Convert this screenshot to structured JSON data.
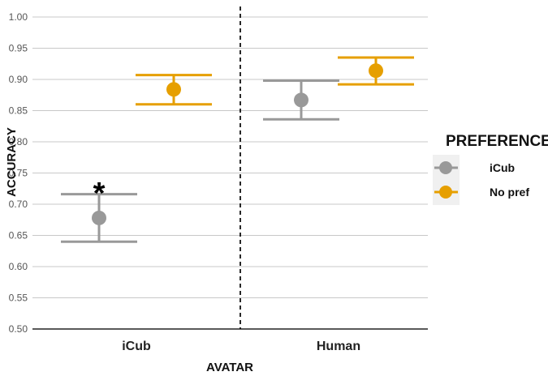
{
  "chart_data": {
    "type": "scatter",
    "xlabel": "AVATAR",
    "ylabel": "ACCURACY",
    "categories": [
      "iCub",
      "Human"
    ],
    "ylim": [
      0.5,
      1.0
    ],
    "yticks": [
      "1.00",
      "0.95",
      "0.90",
      "0.85",
      "0.80",
      "0.75",
      "0.70",
      "0.65",
      "0.60",
      "0.55",
      "0.50"
    ],
    "grid": "horizontal",
    "legend": {
      "title": "PREFERENCE",
      "placement": "right",
      "entries": [
        "iCub",
        "No pref"
      ]
    },
    "series": [
      {
        "name": "iCub",
        "color": "#999999",
        "points": [
          {
            "category": "iCub",
            "mean": 0.678,
            "upper": 0.716,
            "lower": 0.64
          },
          {
            "category": "Human",
            "mean": 0.867,
            "upper": 0.898,
            "lower": 0.836
          }
        ]
      },
      {
        "name": "No pref",
        "color": "#E69F00",
        "points": [
          {
            "category": "iCub",
            "mean": 0.884,
            "upper": 0.907,
            "lower": 0.86
          },
          {
            "category": "Human",
            "mean": 0.914,
            "upper": 0.935,
            "lower": 0.892
          }
        ]
      }
    ],
    "annotations": [
      {
        "text": "*",
        "category": "iCub",
        "series": "iCub",
        "y": 0.73
      }
    ]
  }
}
